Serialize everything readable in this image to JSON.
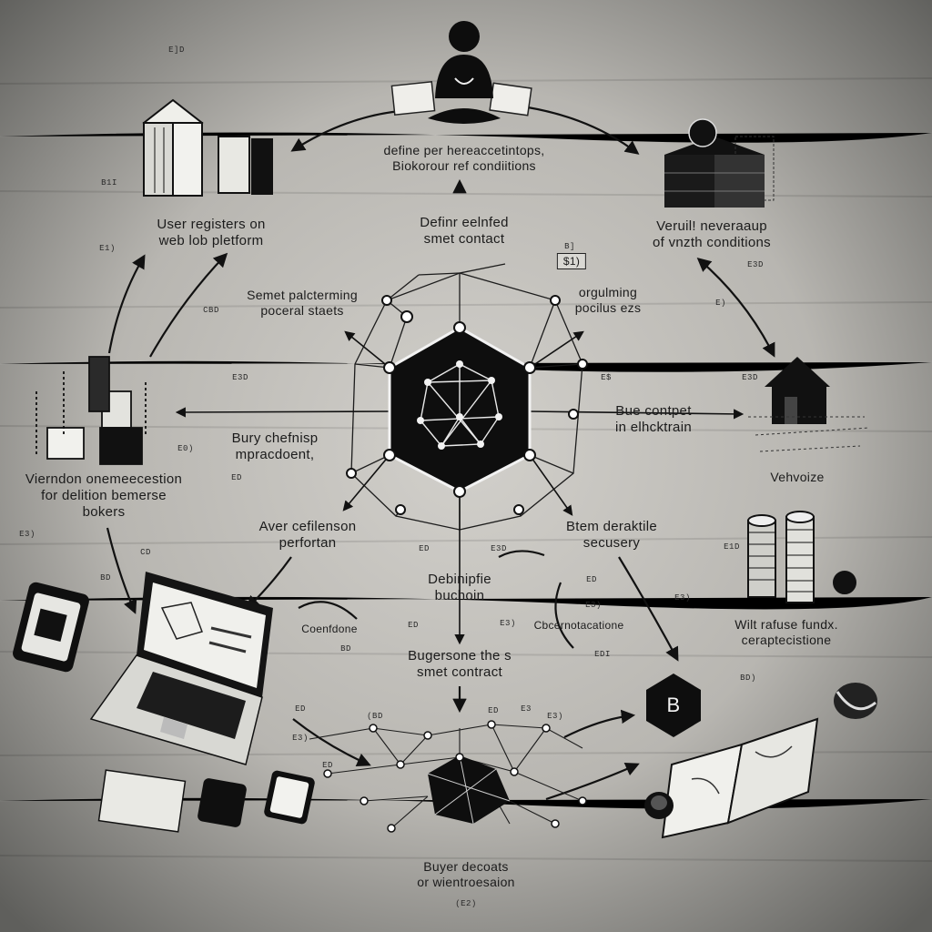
{
  "diagram": {
    "center_hub": {
      "icon": "network-icon"
    },
    "steps": {
      "top": [
        "define per hereaccetintops,",
        "Biokorour ref condiitions"
      ],
      "define_smart": [
        "Definr eelnfed",
        "smet contact"
      ],
      "top_right": [
        "Veruil! neveraaup",
        "of vnzth conditions"
      ],
      "user_registers": [
        "User registers on",
        "web lob pletform"
      ],
      "smart_parameters": [
        "Semet palcterming",
        "poceral staets"
      ],
      "organizing": [
        "orgulming",
        "pocilus ezs"
      ],
      "badge_51": "$1)",
      "bury": [
        "Bury chefnisp",
        "mpracdoent,"
      ],
      "base_contract": [
        "Bue contpet",
        "in elhcktrain"
      ],
      "verification": [
        "Vierndon onemeecestion",
        "for delition bemerse",
        "bokers"
      ],
      "vehicle": [
        "Vehvoize"
      ],
      "aver": [
        "Aver cefilenson",
        "perfortan"
      ],
      "better": [
        "Btem deraktile",
        "secusery"
      ],
      "deploy": [
        "Debinipfie",
        "buchoin"
      ],
      "conditions": "Coenfdone",
      "observations": "Cbcernotacatione",
      "release_funds": [
        "Wilt rafuse fundx.",
        "ceraptecistione"
      ],
      "buyer_smart": [
        "Bugersone the s",
        "smet contract"
      ],
      "buyer_deposits": [
        "Buyer decoats",
        "or wientroesaion"
      ],
      "coin_badge": "B"
    },
    "tags": [
      "E]D",
      "B1I",
      "E1)",
      "CBD",
      "E3D",
      "E0)",
      "E3)",
      "CD",
      "BD",
      "BD",
      "ED",
      "ED",
      "E3D",
      "ED",
      "E3)",
      "EDI",
      "E3)",
      "E$",
      "B]",
      "E3D",
      "E)",
      "E3D",
      "E3)",
      "E1D",
      "BD)",
      "ED",
      "E3)",
      "ED",
      "(BD",
      "E3",
      "E3)",
      "(E2)",
      "ED",
      "ED"
    ]
  }
}
